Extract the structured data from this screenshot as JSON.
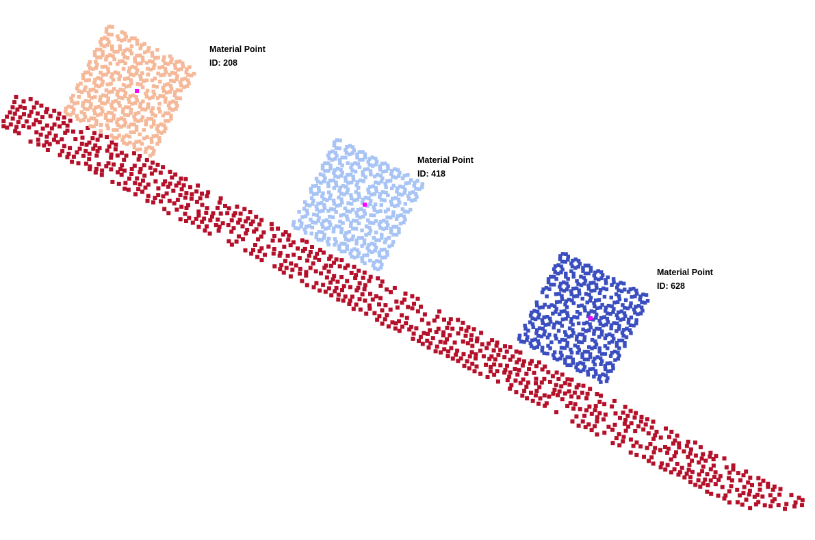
{
  "colors": {
    "background": "#ffffff",
    "incline": "#b5102a",
    "center_marker": "#ff00ff"
  },
  "blocks": [
    {
      "heading": "Material Point",
      "id_text": "ID: 208",
      "color": "#f5b898"
    },
    {
      "heading": "Material Point",
      "id_text": "ID: 418",
      "color": "#a8c4f5"
    },
    {
      "heading": "Material Point",
      "id_text": "ID: 628",
      "color": "#3a4ec0"
    }
  ]
}
